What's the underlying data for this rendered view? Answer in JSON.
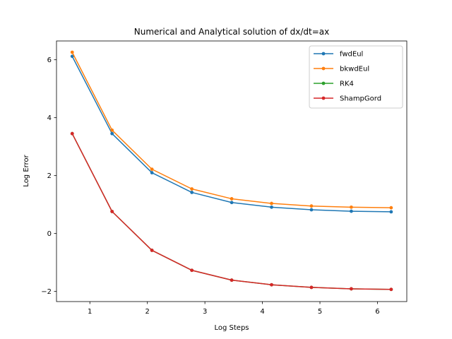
{
  "chart_data": {
    "type": "line",
    "title": "Numerical and Analytical solution of dx/dt=ax",
    "xlabel": "Log Steps",
    "ylabel": "Log Error",
    "xlim": [
      0.42,
      6.51
    ],
    "ylim": [
      -2.35,
      6.65
    ],
    "xticks": [
      1,
      2,
      3,
      4,
      5,
      6
    ],
    "yticks": [
      -2,
      0,
      2,
      4,
      6
    ],
    "grid": false,
    "legend_position": "top-right",
    "x": [
      0.693,
      1.386,
      2.079,
      2.773,
      3.466,
      4.159,
      4.852,
      5.545,
      6.238
    ],
    "series": [
      {
        "name": "fwdEul",
        "color": "#1f77b4",
        "values": [
          6.12,
          3.45,
          2.1,
          1.42,
          1.07,
          0.91,
          0.82,
          0.77,
          0.75
        ]
      },
      {
        "name": "bkwdEul",
        "color": "#ff7f0e",
        "values": [
          6.26,
          3.57,
          2.22,
          1.54,
          1.2,
          1.04,
          0.95,
          0.91,
          0.89
        ]
      },
      {
        "name": "RK4",
        "color": "#2ca02c",
        "values": [
          3.45,
          0.76,
          -0.58,
          -1.27,
          -1.61,
          -1.77,
          -1.86,
          -1.91,
          -1.93
        ]
      },
      {
        "name": "ShampGord",
        "color": "#d62728",
        "values": [
          3.45,
          0.76,
          -0.58,
          -1.27,
          -1.61,
          -1.77,
          -1.86,
          -1.91,
          -1.93
        ]
      }
    ]
  }
}
